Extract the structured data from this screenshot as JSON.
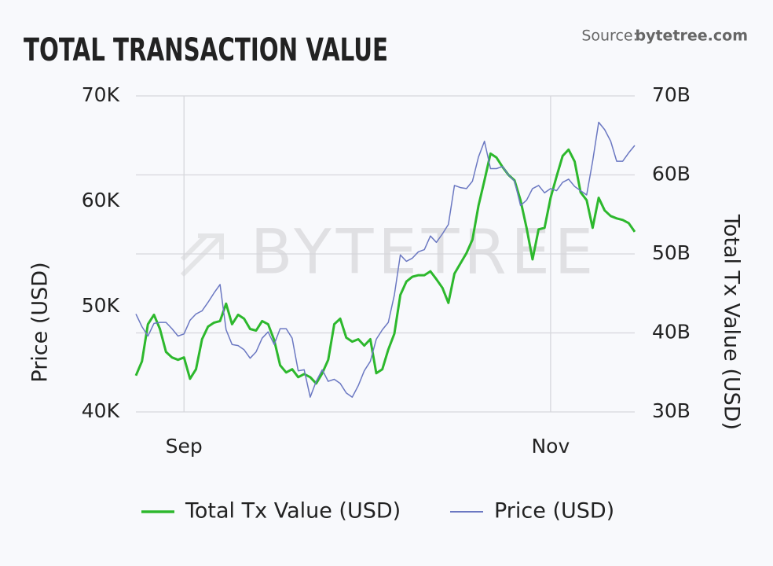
{
  "chart_data": {
    "type": "line",
    "title": "TOTAL TRANSACTION VALUE",
    "source_label": "Source:",
    "source_name": "bytetree.com",
    "watermark": "BYTETREE",
    "ylabel": "Price (USD)",
    "y2label": "Total Tx Value (USD)",
    "categories": [
      null,
      null,
      null,
      null,
      null,
      null,
      null,
      null,
      "Sep",
      null,
      null,
      null,
      null,
      null,
      null,
      null,
      null,
      null,
      null,
      null,
      null,
      null,
      null,
      null,
      null,
      null,
      null,
      null,
      null,
      null,
      null,
      null,
      null,
      null,
      null,
      null,
      null,
      null,
      null,
      null,
      null,
      null,
      null,
      null,
      null,
      null,
      null,
      null,
      null,
      null,
      null,
      null,
      null,
      null,
      null,
      null,
      null,
      null,
      null,
      null,
      null,
      null,
      null,
      null,
      null,
      null,
      null,
      null,
      null,
      "Nov",
      null,
      null,
      null,
      null,
      null,
      null,
      null,
      null,
      null,
      null,
      null,
      null,
      null,
      null
    ],
    "series": [
      {
        "name": "Total Tx Value (USD)",
        "color": "#2db82d",
        "axis": "y2",
        "values": [
          34600000000.0,
          36400000000.0,
          41100000000.0,
          42300000000.0,
          40500000000.0,
          37600000000.0,
          36900000000.0,
          36600000000.0,
          36900000000.0,
          34200000000.0,
          35400000000.0,
          39200000000.0,
          40800000000.0,
          41300000000.0,
          41500000000.0,
          43700000000.0,
          41100000000.0,
          42300000000.0,
          41800000000.0,
          40500000000.0,
          40300000000.0,
          41500000000.0,
          41100000000.0,
          39100000000.0,
          35900000000.0,
          35000000000.0,
          35400000000.0,
          34400000000.0,
          34800000000.0,
          34400000000.0,
          33600000000.0,
          34900000000.0,
          36600000000.0,
          41100000000.0,
          41800000000.0,
          39400000000.0,
          38900000000.0,
          39200000000.0,
          38400000000.0,
          39200000000.0,
          34900000000.0,
          35400000000.0,
          37900000000.0,
          39900000000.0,
          44800000000.0,
          46500000000.0,
          47100000000.0,
          47300000000.0,
          47300000000.0,
          47800000000.0,
          46800000000.0,
          45700000000.0,
          43800000000.0,
          47500000000.0,
          48800000000.0,
          50100000000.0,
          51800000000.0,
          56100000000.0,
          59300000000.0,
          62700000000.0,
          62200000000.0,
          61000000000.0,
          60000000000.0,
          59300000000.0,
          56800000000.0,
          53300000000.0,
          49300000000.0,
          53100000000.0,
          53300000000.0,
          57100000000.0,
          59800000000.0,
          62400000000.0,
          63200000000.0,
          61700000000.0,
          57800000000.0,
          56800000000.0,
          53300000000.0,
          57100000000.0,
          55500000000.0,
          54800000000.0,
          54500000000.0,
          54300000000.0,
          53900000000.0,
          52800000000.0
        ]
      },
      {
        "name": "Price (USD)",
        "color": "#6b78c2",
        "axis": "y",
        "values": [
          49300,
          48100,
          47200,
          48400,
          48500,
          48500,
          47900,
          47200,
          47400,
          48700,
          49300,
          49600,
          50400,
          51300,
          52100,
          47800,
          46400,
          46300,
          45900,
          45100,
          45700,
          47000,
          47600,
          46400,
          47900,
          47900,
          47000,
          43900,
          44000,
          41400,
          42900,
          44000,
          42900,
          43100,
          42700,
          41800,
          41400,
          42500,
          43900,
          44800,
          46900,
          47800,
          48500,
          51100,
          54900,
          54300,
          54600,
          55200,
          55400,
          56700,
          56100,
          56900,
          57800,
          61500,
          61300,
          61200,
          61900,
          64200,
          65700,
          63100,
          63100,
          63300,
          62500,
          61900,
          59600,
          60100,
          61200,
          61500,
          60800,
          61200,
          61000,
          61800,
          62100,
          61400,
          61000,
          60600,
          63800,
          67500,
          66800,
          65700,
          63800,
          63800,
          64600,
          65300
        ]
      }
    ],
    "ylim": [
      40000,
      70000
    ],
    "yticks": [
      {
        "value": 40000,
        "label": "40K"
      },
      {
        "value": 50000,
        "label": "50K"
      },
      {
        "value": 60000,
        "label": "60K"
      },
      {
        "value": 70000,
        "label": "70K"
      }
    ],
    "y2lim": [
      30000000000.0,
      70000000000.0
    ],
    "y2ticks": [
      {
        "value": 30000000000.0,
        "label": "30B"
      },
      {
        "value": 40000000000.0,
        "label": "40B"
      },
      {
        "value": 50000000000.0,
        "label": "50B"
      },
      {
        "value": 60000000000.0,
        "label": "60B"
      },
      {
        "value": 70000000000.0,
        "label": "70B"
      }
    ],
    "grid": true
  }
}
